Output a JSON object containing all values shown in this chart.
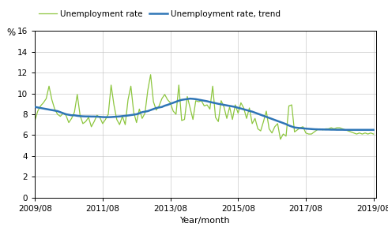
{
  "xlabel": "Year/month",
  "ylabel": "%",
  "ylim": [
    0,
    16
  ],
  "yticks": [
    0,
    2,
    4,
    6,
    8,
    10,
    12,
    14,
    16
  ],
  "line1_color": "#8DC63F",
  "line2_color": "#2E75B6",
  "line1_label": "Unemployment rate",
  "line2_label": "Unemployment rate, trend",
  "xtick_labels": [
    "2009/08",
    "2011/08",
    "2013/08",
    "2015/08",
    "2017/08",
    "2019/08"
  ],
  "xtick_positions": [
    0,
    24,
    48,
    72,
    96,
    120
  ],
  "xlim": [
    0,
    121
  ],
  "unemployment_rate": [
    7.4,
    8.3,
    8.8,
    9.1,
    9.5,
    10.7,
    9.4,
    8.5,
    8.0,
    7.8,
    8.1,
    7.9,
    7.2,
    7.6,
    8.2,
    9.9,
    7.9,
    7.1,
    7.3,
    7.7,
    6.8,
    7.3,
    7.9,
    7.7,
    7.1,
    7.5,
    8.0,
    10.8,
    8.9,
    7.5,
    7.0,
    7.8,
    7.0,
    9.4,
    10.7,
    8.2,
    7.2,
    8.5,
    7.6,
    8.1,
    10.3,
    11.8,
    9.2,
    8.4,
    8.8,
    9.5,
    9.9,
    9.4,
    9.1,
    8.3,
    8.0,
    10.8,
    7.4,
    7.5,
    9.7,
    8.6,
    7.5,
    9.3,
    9.2,
    9.3,
    8.8,
    8.9,
    8.5,
    10.7,
    7.7,
    7.3,
    9.3,
    8.7,
    7.6,
    8.7,
    7.5,
    8.9,
    8.1,
    9.1,
    8.6,
    7.6,
    8.6,
    7.1,
    7.6,
    6.6,
    6.4,
    7.3,
    8.3,
    6.6,
    6.2,
    6.8,
    7.1,
    5.6,
    6.1,
    5.9,
    8.8,
    8.9,
    6.3,
    6.5,
    6.7,
    6.8,
    6.2,
    6.1,
    6.1,
    6.3,
    6.5,
    6.6,
    6.5,
    6.6,
    6.6,
    6.7,
    6.6,
    6.7,
    6.7,
    6.6,
    6.5,
    6.4,
    6.3,
    6.2,
    6.1,
    6.2,
    6.1,
    6.2,
    6.1,
    6.2,
    6.1
  ],
  "trend_rate": [
    8.7,
    8.65,
    8.6,
    8.55,
    8.5,
    8.45,
    8.4,
    8.35,
    8.3,
    8.2,
    8.1,
    8.0,
    7.95,
    7.9,
    7.9,
    7.85,
    7.82,
    7.8,
    7.79,
    7.79,
    7.78,
    7.78,
    7.77,
    7.75,
    7.73,
    7.72,
    7.72,
    7.73,
    7.75,
    7.77,
    7.79,
    7.82,
    7.85,
    7.88,
    7.92,
    7.96,
    8.0,
    8.1,
    8.2,
    8.25,
    8.3,
    8.4,
    8.5,
    8.6,
    8.65,
    8.7,
    8.82,
    8.9,
    9.0,
    9.1,
    9.2,
    9.3,
    9.38,
    9.42,
    9.46,
    9.5,
    9.48,
    9.45,
    9.4,
    9.35,
    9.3,
    9.25,
    9.18,
    9.12,
    9.06,
    9.0,
    8.95,
    8.9,
    8.85,
    8.8,
    8.75,
    8.7,
    8.62,
    8.55,
    8.47,
    8.4,
    8.32,
    8.25,
    8.15,
    8.05,
    7.95,
    7.85,
    7.75,
    7.65,
    7.55,
    7.45,
    7.35,
    7.25,
    7.15,
    7.05,
    6.92,
    6.82,
    6.73,
    6.7,
    6.67,
    6.65,
    6.62,
    6.6,
    6.58,
    6.56,
    6.55,
    6.54,
    6.54,
    6.53,
    6.53,
    6.52,
    6.52,
    6.51,
    6.51,
    6.51,
    6.5,
    6.5,
    6.5,
    6.5,
    6.5,
    6.5,
    6.5,
    6.5,
    6.5,
    6.5,
    6.5
  ]
}
